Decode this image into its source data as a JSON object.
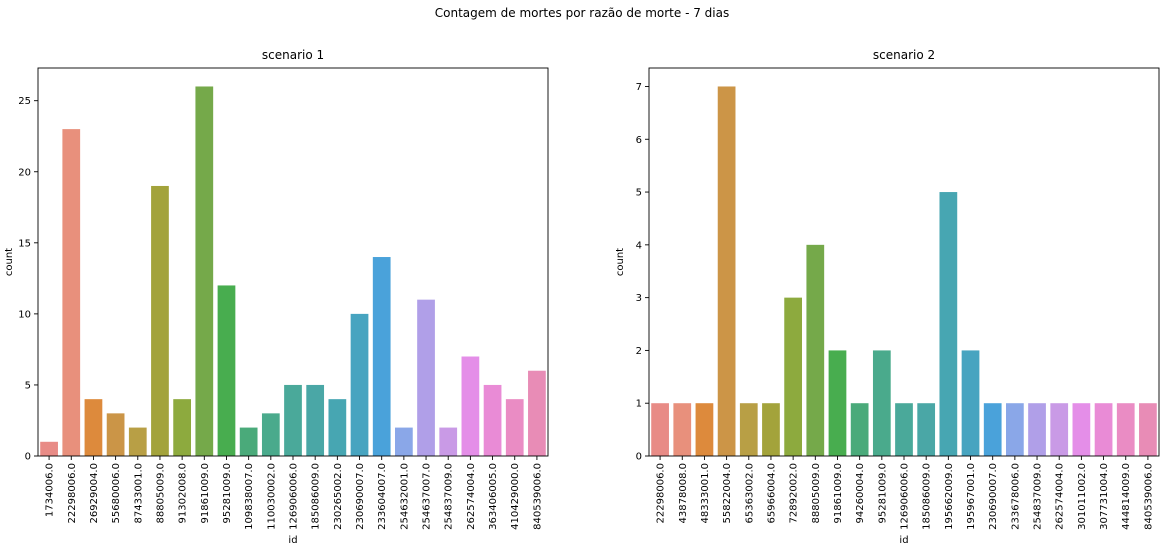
{
  "suptitle": "Contagem de mortes por razão de morte - 7 dias",
  "chart_data": [
    {
      "type": "bar",
      "title": "scenario 1",
      "xlabel": "id",
      "ylabel": "count",
      "ylim": [
        0,
        27.3
      ],
      "yticks": [
        0,
        5,
        10,
        15,
        20,
        25
      ],
      "grid": false,
      "categories": [
        "1734006.0",
        "22298006.0",
        "26929004.0",
        "55680006.0",
        "87433001.0",
        "88805009.0",
        "91302008.0",
        "91861009.0",
        "95281009.0",
        "109838007.0",
        "110030002.0",
        "126906006.0",
        "185086009.0",
        "230265002.0",
        "230690007.0",
        "233604007.0",
        "254632001.0",
        "254637007.0",
        "254837009.0",
        "262574004.0",
        "363406005.0",
        "410429000.0",
        "840539006.0"
      ],
      "values": [
        1,
        23,
        4,
        3,
        2,
        19,
        4,
        26,
        12,
        2,
        3,
        5,
        5,
        4,
        10,
        14,
        2,
        11,
        2,
        7,
        5,
        4,
        6
      ],
      "colors": [
        "#e88b86",
        "#e8907c",
        "#dd8a3c",
        "#cb9547",
        "#b89f45",
        "#a3a33b",
        "#8daa3e",
        "#75a94a",
        "#48ad4f",
        "#4aaa7a",
        "#4aaa8c",
        "#4aa99a",
        "#4aa7a6",
        "#47a6b2",
        "#47a4c0",
        "#4aa2da",
        "#8aa7e8",
        "#b09fe8",
        "#c99ae6",
        "#e48ee8",
        "#e98bd6",
        "#ea8cc4",
        "#e88cb6"
      ]
    },
    {
      "type": "bar",
      "title": "scenario 2",
      "xlabel": "id",
      "ylabel": "count",
      "ylim": [
        0,
        7.35
      ],
      "yticks": [
        0,
        1,
        2,
        3,
        4,
        5,
        6,
        7
      ],
      "grid": false,
      "categories": [
        "22298006.0",
        "43878008.0",
        "48333001.0",
        "55822004.0",
        "65363002.0",
        "65966004.0",
        "72892002.0",
        "88805009.0",
        "91861009.0",
        "94260004.0",
        "95281009.0",
        "126906006.0",
        "185086009.0",
        "195662009.0",
        "195967001.0",
        "230690007.0",
        "233678006.0",
        "254837009.0",
        "262574004.0",
        "301011002.0",
        "307731004.0",
        "444814009.0",
        "840539006.0"
      ],
      "values": [
        1,
        1,
        1,
        7,
        1,
        1,
        3,
        4,
        2,
        1,
        2,
        1,
        1,
        5,
        2,
        1,
        1,
        1,
        1,
        1,
        1,
        1,
        1
      ],
      "colors": [
        "#e88b86",
        "#e8907c",
        "#dd8a3c",
        "#cc9547",
        "#b89f45",
        "#a3a33b",
        "#8daa3e",
        "#75a94a",
        "#48ad4f",
        "#4aaa7a",
        "#4aaa8c",
        "#4aa99a",
        "#4aa7a6",
        "#47a6b2",
        "#47a4c0",
        "#4aa2da",
        "#8aa7e8",
        "#b09fe8",
        "#c99ae6",
        "#e48ee8",
        "#e98bd6",
        "#ea8cc4",
        "#e88cb6"
      ]
    }
  ]
}
